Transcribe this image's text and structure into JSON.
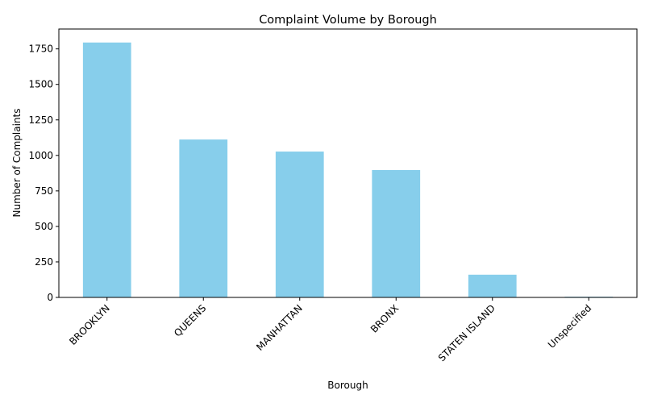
{
  "chart_data": {
    "type": "bar",
    "title": "Complaint Volume by Borough",
    "xlabel": "Borough",
    "ylabel": "Number of Complaints",
    "categories": [
      "BROOKLYN",
      "QUEENS",
      "MANHATTAN",
      "BRONX",
      "STATEN ISLAND",
      "Unspecified"
    ],
    "values": [
      1795,
      1112,
      1027,
      897,
      160,
      5
    ],
    "ylim": [
      0,
      1890
    ],
    "yticks": [
      0,
      250,
      500,
      750,
      1000,
      1250,
      1500,
      1750
    ],
    "grid": false,
    "bar_color": "#87ceeb"
  }
}
